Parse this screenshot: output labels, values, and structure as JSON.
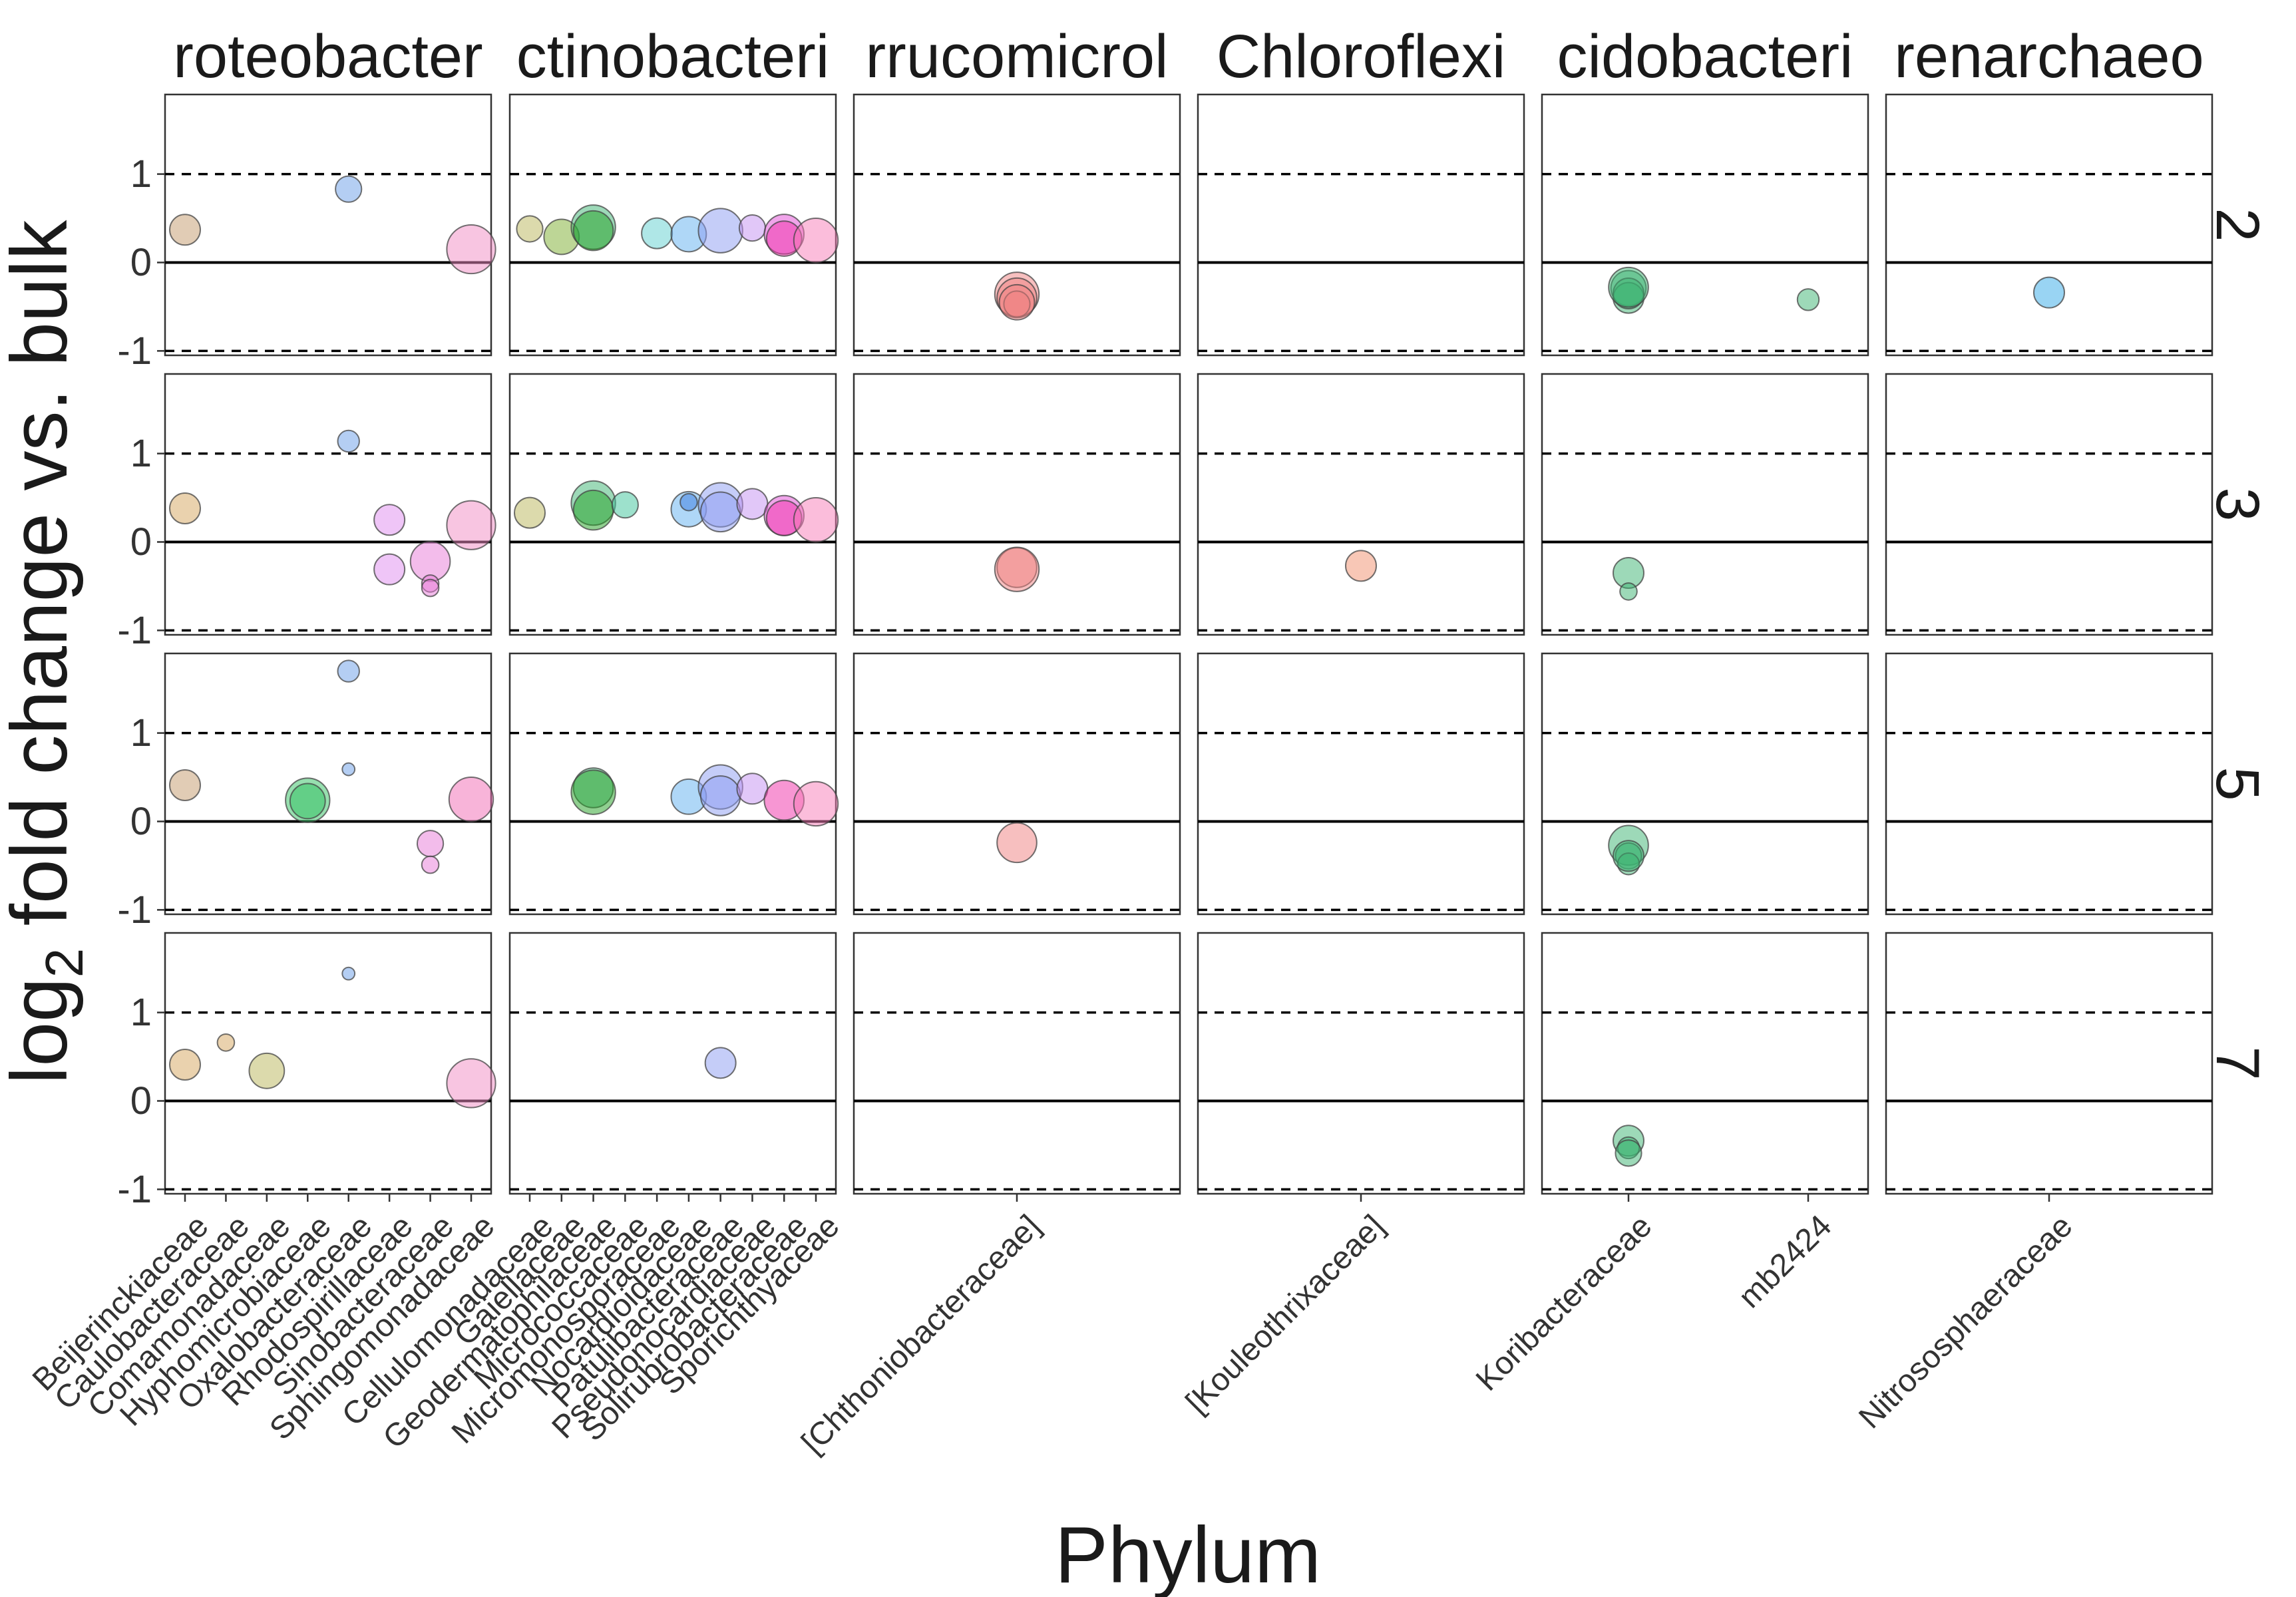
{
  "chart_data": {
    "type": "scatter",
    "xlabel": "Phylum",
    "ylabel": "log₂ fold change vs. bulk",
    "ylim": [
      -1.05,
      1.9
    ],
    "y_ticks": [
      1,
      0,
      -1
    ],
    "y_tick_labels": [
      "1",
      "0",
      "-1"
    ],
    "reference_lines": {
      "solid": [
        0
      ],
      "dashed": [
        1,
        -1
      ]
    },
    "grid": false,
    "legend": "none",
    "row_facets": [
      "2",
      "3",
      "5",
      "7"
    ],
    "column_facets": [
      {
        "name": "Proteobacteria",
        "strip_label": "roteobacter",
        "families": [
          "Beijerinckiaceae",
          "Caulobacteraceae",
          "Comamonadaceae",
          "Hyphomicrobiaceae",
          "Oxalobacteraceae",
          "Rhodospirillaceae",
          "Sinobacteraceae",
          "Sphingomonadaceae"
        ]
      },
      {
        "name": "Actinobacteria",
        "strip_label": "ctinobacteri",
        "families": [
          "Cellulomonadaceae",
          "Gaiellaceae",
          "Geodermatophilaceae",
          "Micrococcaceae",
          "Micromonosporaceae",
          "Nocardioidaceae",
          "Patulibacteraceae",
          "Pseudonocardiaceae",
          "Solirubrobacteraceae",
          "Sporichthyaceae"
        ]
      },
      {
        "name": "Verrucomicrobia",
        "strip_label": "rrucomicrol",
        "families": [
          "[Chthoniobacteraceae]"
        ]
      },
      {
        "name": "Chloroflexi",
        "strip_label": "Chloroflexi",
        "families": [
          "[Kouleothrixaceae]"
        ]
      },
      {
        "name": "Acidobacteria",
        "strip_label": "cidobacteri",
        "families": [
          "Koribacteraceae",
          "mb2424"
        ]
      },
      {
        "name": "Crenarchaeota",
        "strip_label": "renarchaeo",
        "families": [
          "Nitrososphaeraceae"
        ]
      }
    ],
    "points": [
      {
        "row": "2",
        "phylum": "Proteobacteria",
        "family": "Beijerinckiaceae",
        "y": 0.37,
        "size": 5,
        "color": "#c49a6c"
      },
      {
        "row": "2",
        "phylum": "Proteobacteria",
        "family": "Oxalobacteraceae",
        "y": 0.83,
        "size": 4,
        "color": "#6a9de8"
      },
      {
        "row": "2",
        "phylum": "Proteobacteria",
        "family": "Sphingomonadaceae",
        "y": 0.15,
        "size": 9,
        "color": "#f28cc4"
      },
      {
        "row": "3",
        "phylum": "Proteobacteria",
        "family": "Beijerinckiaceae",
        "y": 0.38,
        "size": 5,
        "color": "#d6a55e"
      },
      {
        "row": "3",
        "phylum": "Proteobacteria",
        "family": "Oxalobacteraceae",
        "y": 1.14,
        "size": 3,
        "color": "#6a9de8"
      },
      {
        "row": "3",
        "phylum": "Proteobacteria",
        "family": "Rhodospirillaceae",
        "y": 0.25,
        "size": 5,
        "color": "#e08cf0"
      },
      {
        "row": "3",
        "phylum": "Proteobacteria",
        "family": "Rhodospirillaceae",
        "y": -0.31,
        "size": 5,
        "color": "#e08cf0"
      },
      {
        "row": "3",
        "phylum": "Proteobacteria",
        "family": "Sinobacteraceae",
        "y": -0.22,
        "size": 7,
        "color": "#e87ad8"
      },
      {
        "row": "3",
        "phylum": "Proteobacteria",
        "family": "Sinobacteraceae",
        "y": -0.47,
        "size": 2,
        "color": "#e87ad8"
      },
      {
        "row": "3",
        "phylum": "Proteobacteria",
        "family": "Sinobacteraceae",
        "y": -0.52,
        "size": 2,
        "color": "#e87ad8"
      },
      {
        "row": "3",
        "phylum": "Proteobacteria",
        "family": "Sphingomonadaceae",
        "y": 0.19,
        "size": 9,
        "color": "#f28cc4"
      },
      {
        "row": "5",
        "phylum": "Proteobacteria",
        "family": "Beijerinckiaceae",
        "y": 0.41,
        "size": 5,
        "color": "#c49a6c"
      },
      {
        "row": "5",
        "phylum": "Proteobacteria",
        "family": "Hyphomicrobiaceae",
        "y": 0.24,
        "size": 8,
        "color": "#2fbf5f"
      },
      {
        "row": "5",
        "phylum": "Proteobacteria",
        "family": "Hyphomicrobiaceae",
        "y": 0.23,
        "size": 6,
        "color": "#2fbf5f"
      },
      {
        "row": "5",
        "phylum": "Proteobacteria",
        "family": "Oxalobacteraceae",
        "y": 1.7,
        "size": 3,
        "color": "#6a9de8"
      },
      {
        "row": "5",
        "phylum": "Proteobacteria",
        "family": "Oxalobacteraceae",
        "y": 0.59,
        "size": 1,
        "color": "#6a9de8"
      },
      {
        "row": "5",
        "phylum": "Proteobacteria",
        "family": "Sinobacteraceae",
        "y": -0.25,
        "size": 4,
        "color": "#e87ad8"
      },
      {
        "row": "5",
        "phylum": "Proteobacteria",
        "family": "Sinobacteraceae",
        "y": -0.49,
        "size": 2,
        "color": "#e87ad8"
      },
      {
        "row": "5",
        "phylum": "Proteobacteria",
        "family": "Sphingomonadaceae",
        "y": 0.25,
        "size": 8,
        "color": "#f26ab4"
      },
      {
        "row": "7",
        "phylum": "Proteobacteria",
        "family": "Beijerinckiaceae",
        "y": 0.41,
        "size": 5,
        "color": "#d6a55e"
      },
      {
        "row": "7",
        "phylum": "Proteobacteria",
        "family": "Caulobacteraceae",
        "y": 0.66,
        "size": 2,
        "color": "#d6a55e"
      },
      {
        "row": "7",
        "phylum": "Proteobacteria",
        "family": "Comamonadaceae",
        "y": 0.34,
        "size": 6,
        "color": "#b9b55a"
      },
      {
        "row": "7",
        "phylum": "Proteobacteria",
        "family": "Oxalobacteraceae",
        "y": 1.44,
        "size": 1,
        "color": "#6a9de8"
      },
      {
        "row": "7",
        "phylum": "Proteobacteria",
        "family": "Sphingomonadaceae",
        "y": 0.2,
        "size": 9,
        "color": "#f28cc4"
      },
      {
        "row": "2",
        "phylum": "Actinobacteria",
        "family": "Cellulomonadaceae",
        "y": 0.38,
        "size": 4,
        "color": "#b9b55a"
      },
      {
        "row": "2",
        "phylum": "Actinobacteria",
        "family": "Gaiellaceae",
        "y": 0.29,
        "size": 6,
        "color": "#7cae2e"
      },
      {
        "row": "2",
        "phylum": "Actinobacteria",
        "family": "Geodermatophilaceae",
        "y": 0.4,
        "size": 8,
        "color": "#3cb371"
      },
      {
        "row": "2",
        "phylum": "Actinobacteria",
        "family": "Geodermatophilaceae",
        "y": 0.36,
        "size": 7,
        "color": "#22a022"
      },
      {
        "row": "2",
        "phylum": "Actinobacteria",
        "family": "Micromonosporaceae",
        "y": 0.33,
        "size": 5,
        "color": "#5fd0d0"
      },
      {
        "row": "2",
        "phylum": "Actinobacteria",
        "family": "Nocardioidaceae",
        "y": 0.32,
        "size": 6,
        "color": "#5fb0ef"
      },
      {
        "row": "2",
        "phylum": "Actinobacteria",
        "family": "Patulibacteraceae",
        "y": 0.36,
        "size": 8,
        "color": "#8c9cf2"
      },
      {
        "row": "2",
        "phylum": "Actinobacteria",
        "family": "Pseudonocardiaceae",
        "y": 0.39,
        "size": 4,
        "color": "#c490f2"
      },
      {
        "row": "2",
        "phylum": "Actinobacteria",
        "family": "Solirubrobacteraceae",
        "y": 0.32,
        "size": 7,
        "color": "#e24ad6"
      },
      {
        "row": "2",
        "phylum": "Actinobacteria",
        "family": "Solirubrobacteraceae",
        "y": 0.27,
        "size": 6,
        "color": "#f02ea8"
      },
      {
        "row": "2",
        "phylum": "Actinobacteria",
        "family": "Sporichthyaceae",
        "y": 0.25,
        "size": 8,
        "color": "#f77cb8"
      },
      {
        "row": "3",
        "phylum": "Actinobacteria",
        "family": "Cellulomonadaceae",
        "y": 0.33,
        "size": 5,
        "color": "#b9b55a"
      },
      {
        "row": "3",
        "phylum": "Actinobacteria",
        "family": "Geodermatophilaceae",
        "y": 0.44,
        "size": 8,
        "color": "#3cb371"
      },
      {
        "row": "3",
        "phylum": "Actinobacteria",
        "family": "Geodermatophilaceae",
        "y": 0.36,
        "size": 7,
        "color": "#22a022"
      },
      {
        "row": "3",
        "phylum": "Actinobacteria",
        "family": "Micrococcaceae",
        "y": 0.42,
        "size": 4,
        "color": "#3cc39a"
      },
      {
        "row": "3",
        "phylum": "Actinobacteria",
        "family": "Nocardioidaceae",
        "y": 0.37,
        "size": 6,
        "color": "#5fb0ef"
      },
      {
        "row": "3",
        "phylum": "Actinobacteria",
        "family": "Nocardioidaceae",
        "y": 0.45,
        "size": 2,
        "color": "#3a7be0"
      },
      {
        "row": "3",
        "phylum": "Actinobacteria",
        "family": "Patulibacteraceae",
        "y": 0.42,
        "size": 8,
        "color": "#8c9cf2"
      },
      {
        "row": "3",
        "phylum": "Actinobacteria",
        "family": "Patulibacteraceae",
        "y": 0.34,
        "size": 7,
        "color": "#8c9cf2"
      },
      {
        "row": "3",
        "phylum": "Actinobacteria",
        "family": "Pseudonocardiaceae",
        "y": 0.43,
        "size": 5,
        "color": "#c490f2"
      },
      {
        "row": "3",
        "phylum": "Actinobacteria",
        "family": "Solirubrobacteraceae",
        "y": 0.3,
        "size": 7,
        "color": "#e24ad6"
      },
      {
        "row": "3",
        "phylum": "Actinobacteria",
        "family": "Solirubrobacteraceae",
        "y": 0.27,
        "size": 6,
        "color": "#f02ea8"
      },
      {
        "row": "3",
        "phylum": "Actinobacteria",
        "family": "Sporichthyaceae",
        "y": 0.25,
        "size": 8,
        "color": "#f77cb8"
      },
      {
        "row": "5",
        "phylum": "Actinobacteria",
        "family": "Geodermatophilaceae",
        "y": 0.38,
        "size": 7,
        "color": "#3cb371"
      },
      {
        "row": "5",
        "phylum": "Actinobacteria",
        "family": "Geodermatophilaceae",
        "y": 0.33,
        "size": 8,
        "color": "#22a022"
      },
      {
        "row": "5",
        "phylum": "Actinobacteria",
        "family": "Nocardioidaceae",
        "y": 0.28,
        "size": 6,
        "color": "#5fb0ef"
      },
      {
        "row": "5",
        "phylum": "Actinobacteria",
        "family": "Patulibacteraceae",
        "y": 0.39,
        "size": 8,
        "color": "#8c9cf2"
      },
      {
        "row": "5",
        "phylum": "Actinobacteria",
        "family": "Patulibacteraceae",
        "y": 0.29,
        "size": 7,
        "color": "#8c9cf2"
      },
      {
        "row": "5",
        "phylum": "Actinobacteria",
        "family": "Pseudonocardiaceae",
        "y": 0.37,
        "size": 5,
        "color": "#c490f2"
      },
      {
        "row": "5",
        "phylum": "Actinobacteria",
        "family": "Solirubrobacteraceae",
        "y": 0.24,
        "size": 7,
        "color": "#f02ea8"
      },
      {
        "row": "5",
        "phylum": "Actinobacteria",
        "family": "Sporichthyaceae",
        "y": 0.2,
        "size": 8,
        "color": "#f77cb8"
      },
      {
        "row": "7",
        "phylum": "Actinobacteria",
        "family": "Patulibacteraceae",
        "y": 0.43,
        "size": 5,
        "color": "#8c9cf2"
      },
      {
        "row": "2",
        "phylum": "Verrucomicrobia",
        "family": "[Chthoniobacteraceae]",
        "y": -0.36,
        "size": 8,
        "color": "#f08080"
      },
      {
        "row": "2",
        "phylum": "Verrucomicrobia",
        "family": "[Chthoniobacteraceae]",
        "y": -0.4,
        "size": 7,
        "color": "#f08080"
      },
      {
        "row": "2",
        "phylum": "Verrucomicrobia",
        "family": "[Chthoniobacteraceae]",
        "y": -0.47,
        "size": 4,
        "color": "#f08080"
      },
      {
        "row": "2",
        "phylum": "Verrucomicrobia",
        "family": "[Chthoniobacteraceae]",
        "y": -0.45,
        "size": 6,
        "color": "#f08080"
      },
      {
        "row": "3",
        "phylum": "Verrucomicrobia",
        "family": "[Chthoniobacteraceae]",
        "y": -0.29,
        "size": 7,
        "color": "#f08080"
      },
      {
        "row": "3",
        "phylum": "Verrucomicrobia",
        "family": "[Chthoniobacteraceae]",
        "y": -0.31,
        "size": 8,
        "color": "#f08080"
      },
      {
        "row": "5",
        "phylum": "Verrucomicrobia",
        "family": "[Chthoniobacteraceae]",
        "y": -0.24,
        "size": 7,
        "color": "#f08080"
      },
      {
        "row": "3",
        "phylum": "Chloroflexi",
        "family": "[Kouleothrixaceae]",
        "y": -0.27,
        "size": 5,
        "color": "#f2906e"
      },
      {
        "row": "2",
        "phylum": "Acidobacteria",
        "family": "Koribacteraceae",
        "y": -0.29,
        "size": 6,
        "color": "#3cb371"
      },
      {
        "row": "2",
        "phylum": "Acidobacteria",
        "family": "Koribacteraceae",
        "y": -0.4,
        "size": 5,
        "color": "#3cb371"
      },
      {
        "row": "2",
        "phylum": "Acidobacteria",
        "family": "Koribacteraceae",
        "y": -0.35,
        "size": 5,
        "color": "#3cb371"
      },
      {
        "row": "2",
        "phylum": "Acidobacteria",
        "family": "Koribacteraceae",
        "y": -0.28,
        "size": 7,
        "color": "#3cb371"
      },
      {
        "row": "2",
        "phylum": "Acidobacteria",
        "family": "mb2424",
        "y": -0.42,
        "size": 3,
        "color": "#3cb371"
      },
      {
        "row": "3",
        "phylum": "Acidobacteria",
        "family": "Koribacteraceae",
        "y": -0.35,
        "size": 5,
        "color": "#3cb371"
      },
      {
        "row": "3",
        "phylum": "Acidobacteria",
        "family": "Koribacteraceae",
        "y": -0.56,
        "size": 2,
        "color": "#3cb371"
      },
      {
        "row": "5",
        "phylum": "Acidobacteria",
        "family": "Koribacteraceae",
        "y": -0.27,
        "size": 7,
        "color": "#3cb371"
      },
      {
        "row": "5",
        "phylum": "Acidobacteria",
        "family": "Koribacteraceae",
        "y": -0.39,
        "size": 4,
        "color": "#3cb371"
      },
      {
        "row": "5",
        "phylum": "Acidobacteria",
        "family": "Koribacteraceae",
        "y": -0.48,
        "size": 3,
        "color": "#3cb371"
      },
      {
        "row": "5",
        "phylum": "Acidobacteria",
        "family": "Koribacteraceae",
        "y": -0.39,
        "size": 5,
        "color": "#3cb371"
      },
      {
        "row": "7",
        "phylum": "Acidobacteria",
        "family": "Koribacteraceae",
        "y": -0.45,
        "size": 5,
        "color": "#3cb371"
      },
      {
        "row": "7",
        "phylum": "Acidobacteria",
        "family": "Koribacteraceae",
        "y": -0.53,
        "size": 3,
        "color": "#3cb371"
      },
      {
        "row": "7",
        "phylum": "Acidobacteria",
        "family": "Koribacteraceae",
        "y": -0.59,
        "size": 4,
        "color": "#3cb371"
      },
      {
        "row": "2",
        "phylum": "Crenarchaeota",
        "family": "Nitrososphaeraceae",
        "y": -0.34,
        "size": 5,
        "color": "#33a9e8"
      }
    ]
  }
}
